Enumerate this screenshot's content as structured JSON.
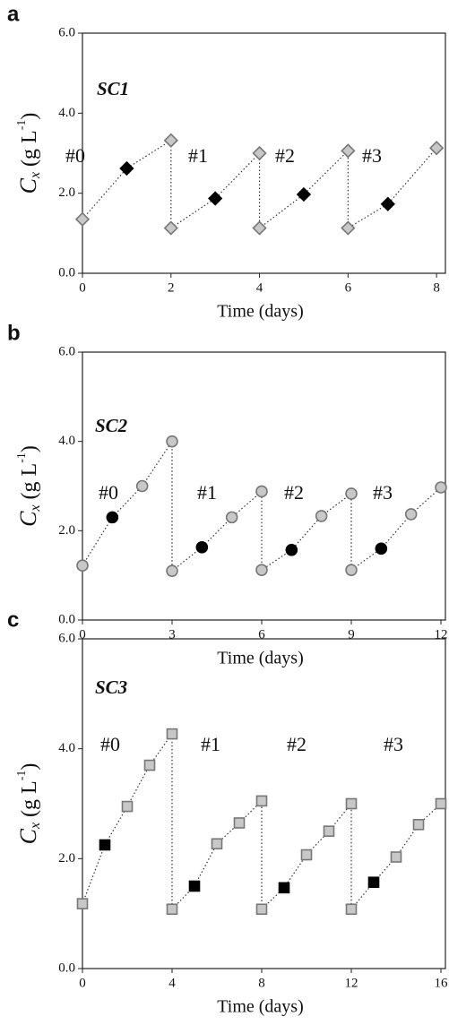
{
  "chart_data": [
    {
      "type": "line",
      "panel_label": "a",
      "annotations": [
        "SC1",
        "#0",
        "#1",
        "#2",
        "#3"
      ],
      "xlabel": "Time (days)",
      "ylabel": [
        "C",
        "x",
        " (g L",
        "-1",
        ")"
      ],
      "x": [
        0,
        1,
        2,
        2,
        3,
        4,
        4,
        5,
        6,
        6,
        6.9,
        8
      ],
      "values": [
        1.35,
        2.62,
        3.32,
        1.13,
        1.87,
        3.0,
        1.13,
        1.97,
        3.06,
        1.13,
        1.73,
        3.13
      ],
      "point_colors": [
        "#c8c8c8",
        "#000000",
        "#c8c8c8",
        "#c8c8c8",
        "#000000",
        "#c8c8c8",
        "#c8c8c8",
        "#000000",
        "#c8c8c8",
        "#c8c8c8",
        "#000000",
        "#c8c8c8"
      ],
      "marker": "diamond",
      "line_color": "#333333",
      "xlim": [
        0,
        8.2
      ],
      "ylim": [
        0,
        6
      ],
      "xticks": [
        0,
        2,
        4,
        6,
        8
      ],
      "yticks": [
        {
          "value": 0,
          "label": "0.0"
        },
        {
          "value": 2,
          "label": "2.0"
        },
        {
          "value": 4,
          "label": "4.0"
        },
        {
          "value": 6,
          "label": "6.0"
        }
      ]
    },
    {
      "type": "line",
      "panel_label": "b",
      "annotations": [
        "SC2",
        "#0",
        "#1",
        "#2",
        "#3"
      ],
      "xlabel": "Time (days)",
      "ylabel": [
        "C",
        "x",
        " (g L",
        "-1",
        ")"
      ],
      "x": [
        0,
        1,
        2,
        3,
        3,
        4,
        5,
        6,
        6,
        7,
        8,
        9,
        9,
        10,
        11,
        12
      ],
      "values": [
        1.22,
        2.3,
        3.0,
        4.0,
        1.1,
        1.63,
        2.3,
        2.88,
        1.12,
        1.57,
        2.33,
        2.83,
        1.12,
        1.6,
        2.37,
        2.97
      ],
      "point_colors": [
        "#c8c8c8",
        "#000000",
        "#c8c8c8",
        "#c8c8c8",
        "#c8c8c8",
        "#000000",
        "#c8c8c8",
        "#c8c8c8",
        "#c8c8c8",
        "#000000",
        "#c8c8c8",
        "#c8c8c8",
        "#c8c8c8",
        "#000000",
        "#c8c8c8",
        "#c8c8c8"
      ],
      "marker": "circle",
      "line_color": "#333333",
      "xlim": [
        0,
        12.15
      ],
      "ylim": [
        0,
        6
      ],
      "xticks": [
        0,
        3,
        6,
        9,
        12
      ],
      "yticks": [
        {
          "value": 0,
          "label": "0.0"
        },
        {
          "value": 2,
          "label": "2.0"
        },
        {
          "value": 4,
          "label": "4.0"
        },
        {
          "value": 6,
          "label": "6.0"
        }
      ]
    },
    {
      "type": "line",
      "panel_label": "c",
      "annotations": [
        "SC3",
        "#0",
        "#1",
        "#2",
        "#3"
      ],
      "xlabel": "Time (days)",
      "ylabel": [
        "C",
        "x",
        " (g L",
        "-1",
        ")"
      ],
      "x": [
        0,
        1,
        2,
        3,
        4,
        4,
        5,
        6,
        7,
        8,
        8,
        9,
        10,
        11,
        12,
        12,
        13,
        14,
        15,
        16
      ],
      "values": [
        1.18,
        2.25,
        2.95,
        3.7,
        4.27,
        1.08,
        1.5,
        2.27,
        2.65,
        3.05,
        1.08,
        1.47,
        2.07,
        2.5,
        3.0,
        1.08,
        1.57,
        2.03,
        2.62,
        3.0
      ],
      "point_colors": [
        "#c8c8c8",
        "#000000",
        "#c8c8c8",
        "#c8c8c8",
        "#c8c8c8",
        "#c8c8c8",
        "#000000",
        "#c8c8c8",
        "#c8c8c8",
        "#c8c8c8",
        "#c8c8c8",
        "#000000",
        "#c8c8c8",
        "#c8c8c8",
        "#c8c8c8",
        "#c8c8c8",
        "#000000",
        "#c8c8c8",
        "#c8c8c8",
        "#c8c8c8"
      ],
      "marker": "square",
      "line_color": "#333333",
      "xlim": [
        0,
        16.2
      ],
      "ylim": [
        0,
        6
      ],
      "xticks": [
        0,
        4,
        8,
        12,
        16
      ],
      "yticks": [
        {
          "value": 0,
          "label": "0.0"
        },
        {
          "value": 2,
          "label": "2.0"
        },
        {
          "value": 4,
          "label": "4.0"
        },
        {
          "value": 6,
          "label": "6.0"
        }
      ]
    }
  ]
}
